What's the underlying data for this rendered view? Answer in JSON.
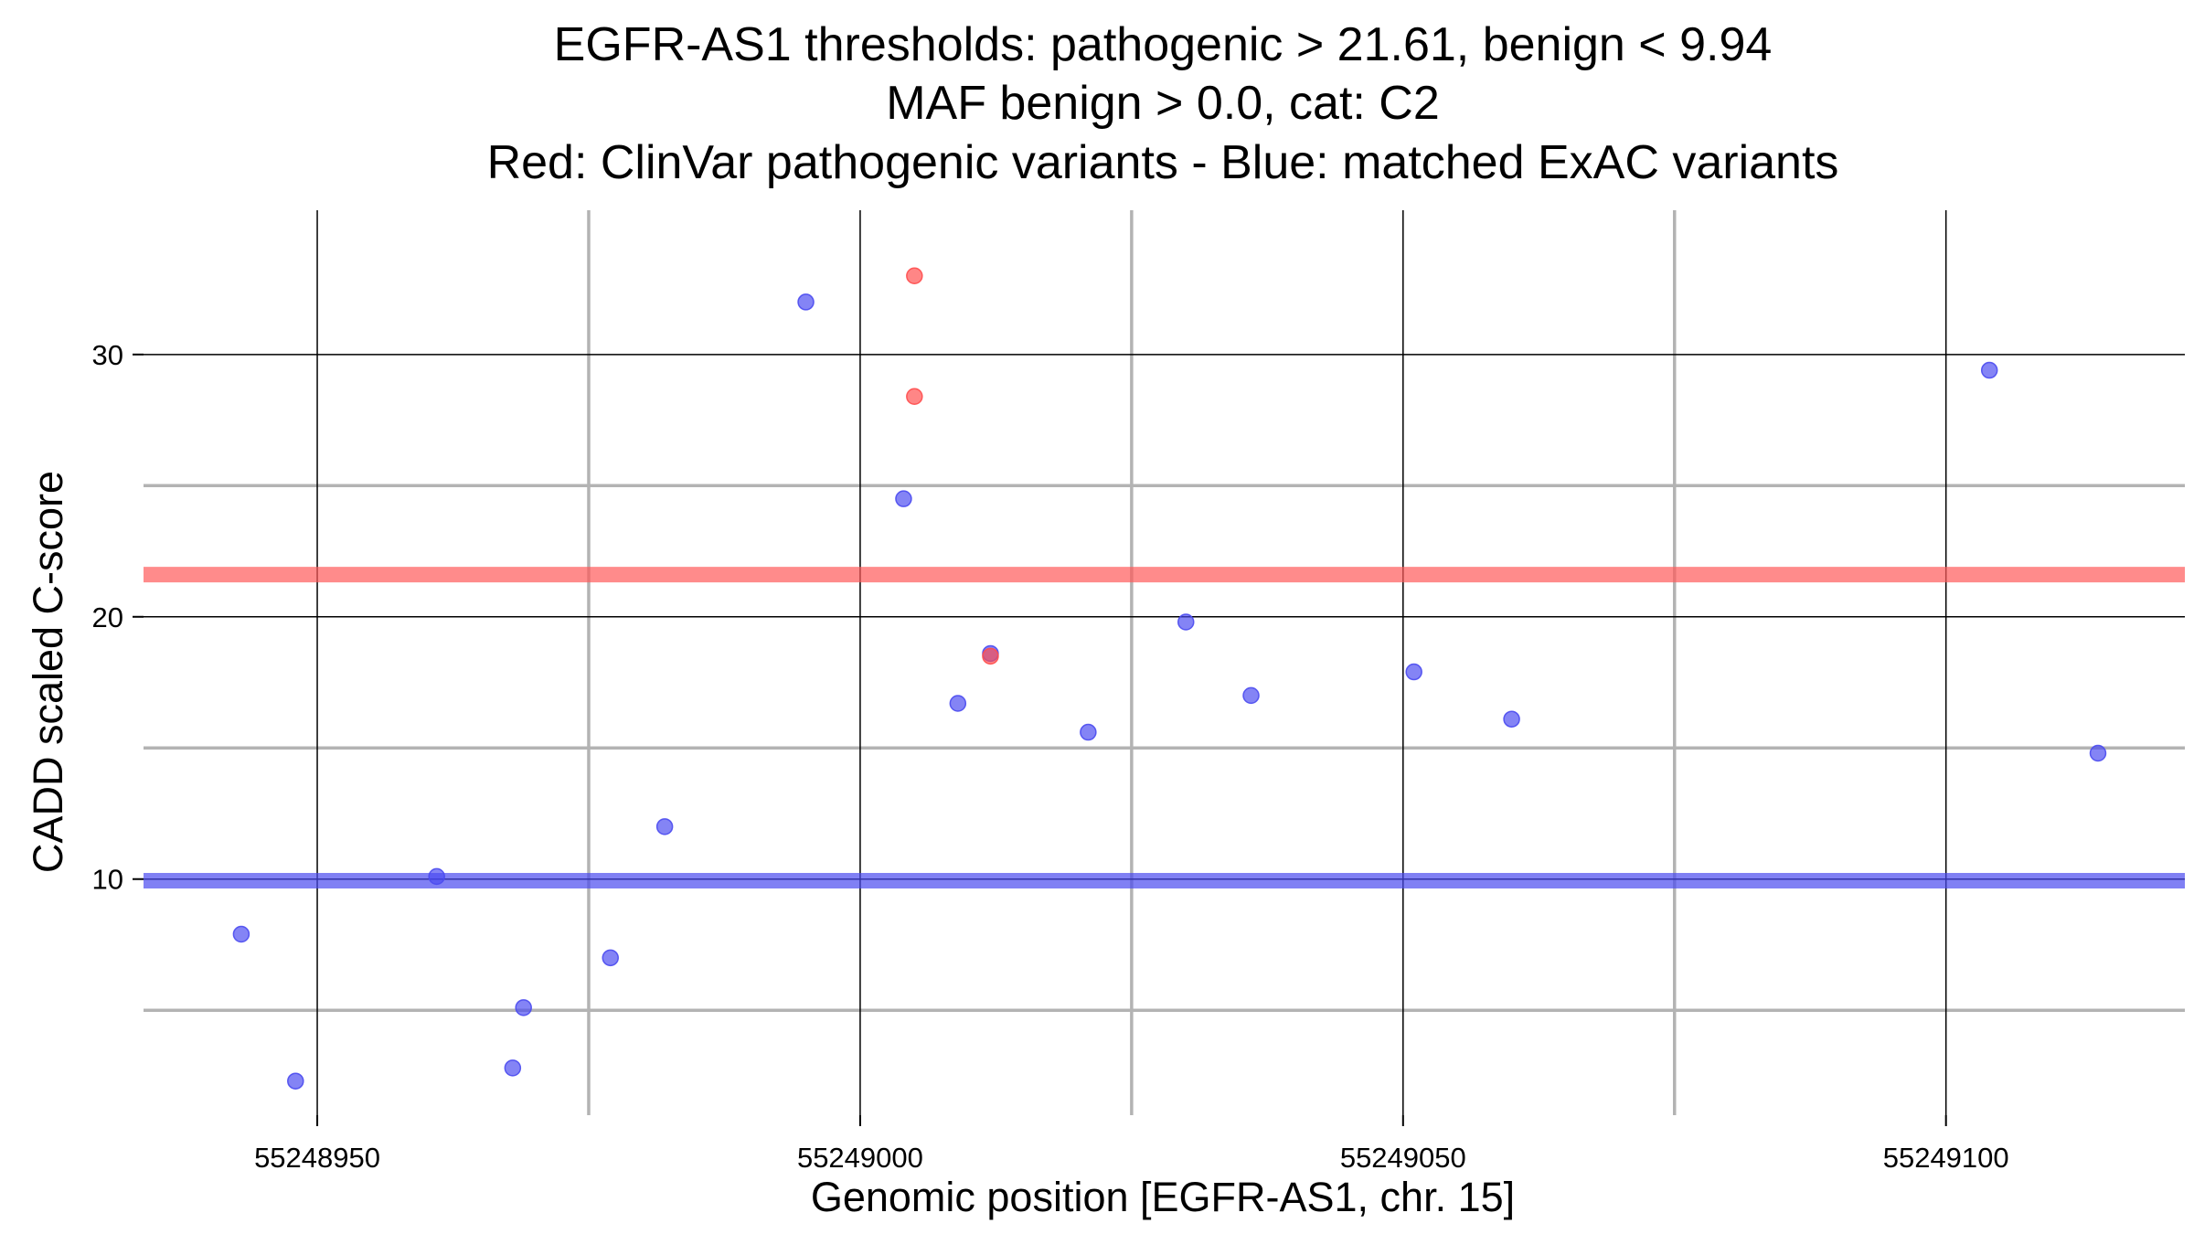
{
  "chart_data": {
    "type": "scatter",
    "title_lines": [
      "EGFR-AS1 thresholds: pathogenic > 21.61, benign < 9.94",
      "MAF benign > 0.0, cat: C2",
      "Red: ClinVar pathogenic variants - Blue: matched ExAC variants"
    ],
    "xlabel": "Genomic position [EGFR-AS1, chr. 15]",
    "ylabel": "CADD scaled C-score",
    "xlim": [
      55248934,
      55249122
    ],
    "ylim": [
      1,
      35.5
    ],
    "x_ticks": [
      55248950,
      55249000,
      55249050,
      55249100
    ],
    "x_tick_labels": [
      "55248950",
      "55249000",
      "55249050",
      "55249100"
    ],
    "x_minor_ticks": [
      55248975,
      55249025,
      55249075
    ],
    "y_ticks": [
      10,
      20,
      30
    ],
    "y_tick_labels": [
      "10",
      "20",
      "30"
    ],
    "y_minor_ticks": [
      5,
      15,
      25
    ],
    "grid": true,
    "thresholds": [
      {
        "value": 21.61,
        "color": "#ff5a5a"
      },
      {
        "value": 9.94,
        "color": "#4a4af0"
      }
    ],
    "series": [
      {
        "color": "#ff4d4d",
        "points": [
          {
            "x": 55249005,
            "y": 33.0
          },
          {
            "x": 55249005,
            "y": 28.4
          },
          {
            "x": 55249012,
            "y": 18.5
          }
        ]
      },
      {
        "color": "#4a4af0",
        "points": [
          {
            "x": 55248943,
            "y": 7.9
          },
          {
            "x": 55248948,
            "y": 2.3
          },
          {
            "x": 55248961,
            "y": 10.1
          },
          {
            "x": 55248968,
            "y": 2.8
          },
          {
            "x": 55248969,
            "y": 5.1
          },
          {
            "x": 55248977,
            "y": 7.0
          },
          {
            "x": 55248982,
            "y": 12.0
          },
          {
            "x": 55248995,
            "y": 32.0
          },
          {
            "x": 55249004,
            "y": 24.5
          },
          {
            "x": 55249009,
            "y": 16.7
          },
          {
            "x": 55249012,
            "y": 18.6
          },
          {
            "x": 55249021,
            "y": 15.6
          },
          {
            "x": 55249030,
            "y": 19.8
          },
          {
            "x": 55249036,
            "y": 17.0
          },
          {
            "x": 55249051,
            "y": 17.9
          },
          {
            "x": 55249060,
            "y": 16.1
          },
          {
            "x": 55249104,
            "y": 29.4
          },
          {
            "x": 55249114,
            "y": 14.8
          }
        ]
      }
    ]
  }
}
